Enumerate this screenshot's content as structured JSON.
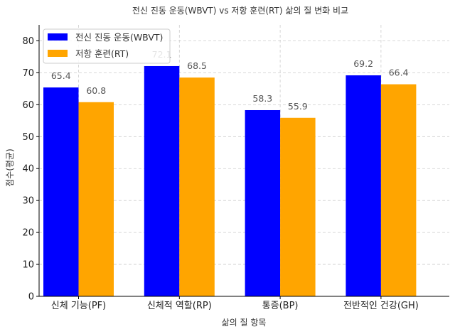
{
  "chart_data": {
    "type": "bar",
    "title": "전신 진동 운동(WBVT) vs 저항 훈련(RT) 삶의 질 변화 비교",
    "xlabel": "삶의 질 항목",
    "ylabel": "점수(평균)",
    "categories": [
      "신체 기능(PF)",
      "신체적 역할(RP)",
      "통증(BP)",
      "전반적인 건강(GH)"
    ],
    "series": [
      {
        "name": "전신 진동 운동(WBVT)",
        "values": [
          65.4,
          72.1,
          58.3,
          69.2
        ],
        "labels": [
          "65.4",
          "72.1",
          "58.3",
          "69.2"
        ],
        "color": "#0000ff"
      },
      {
        "name": "저항 훈련(RT)",
        "values": [
          60.8,
          68.5,
          55.9,
          66.4
        ],
        "labels": [
          "60.8",
          "68.5",
          "55.9",
          "66.4"
        ],
        "color": "#ffa500"
      }
    ],
    "ylim": [
      0,
      85
    ],
    "yticks": [
      0,
      10,
      20,
      30,
      40,
      50,
      60,
      70,
      80
    ],
    "ytick_labels": [
      "0",
      "10",
      "20",
      "30",
      "40",
      "50",
      "60",
      "70",
      "80"
    ],
    "grid": true,
    "legend_position": "top-left"
  }
}
